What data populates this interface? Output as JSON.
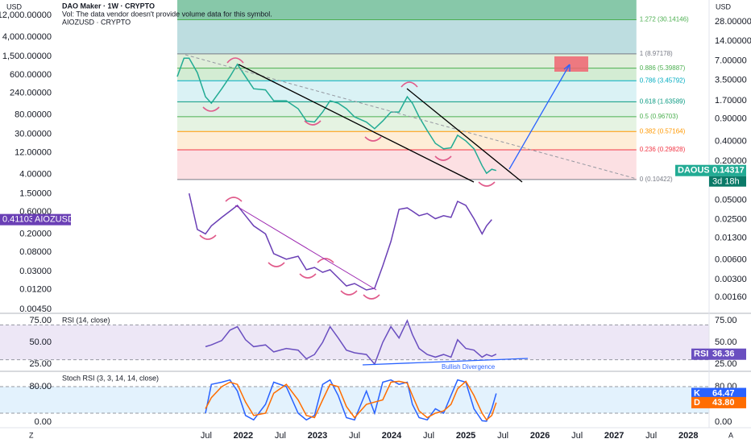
{
  "header": {
    "left_currency": "USD",
    "right_currency": "USD",
    "symbol": "DAO Maker · 1W · CRYPTO",
    "volume_note": "Vol: The data vendor doesn't provide volume data for this symbol.",
    "compare": "AIOZUSD · CRYPTO",
    "corner_left": "Z",
    "corner_right": "A"
  },
  "chart_data": [
    {
      "type": "line",
      "log": true,
      "xlim": [
        2018.72,
        2028.28
      ],
      "x": [
        2021.11,
        2021.2,
        2021.27,
        2021.38,
        2021.49,
        2021.57,
        2021.71,
        2021.82,
        2021.92,
        2022.03,
        2022.14,
        2022.3,
        2022.41,
        2022.58,
        2022.74,
        2022.85,
        2022.96,
        2023.07,
        2023.17,
        2023.28,
        2023.39,
        2023.5,
        2023.66,
        2023.77,
        2023.88,
        2023.99,
        2024.1,
        2024.21,
        2024.28,
        2024.37,
        2024.48,
        2024.59,
        2024.7,
        2024.8,
        2024.89,
        2025.0,
        2025.11,
        2025.22,
        2025.28,
        2025.35,
        2025.41
      ],
      "ylim": [
        0.00383,
        25920
      ],
      "yticks": [
        {
          "value": 12000,
          "label": "12,000.00000"
        },
        {
          "value": 4000,
          "label": "4,000.00000"
        },
        {
          "value": 1500,
          "label": "1,500.00000"
        },
        {
          "value": 600,
          "label": "600.00000"
        },
        {
          "value": 240,
          "label": "240.00000"
        },
        {
          "value": 80,
          "label": "80.00000"
        },
        {
          "value": 30,
          "label": "30.00000"
        },
        {
          "value": 12,
          "label": "12.00000"
        },
        {
          "value": 4,
          "label": "4.00000"
        },
        {
          "value": 1.5,
          "label": "1.50000"
        },
        {
          "value": 0.6,
          "label": "0.60000"
        },
        {
          "value": 0.2,
          "label": "0.20000"
        },
        {
          "value": 0.08,
          "label": "0.08000"
        },
        {
          "value": 0.03,
          "label": "0.03000"
        },
        {
          "value": 0.012,
          "label": "0.01200"
        },
        {
          "value": 0.0045,
          "label": "0.00450"
        }
      ],
      "y2lim": [
        0.00093,
        60.6
      ],
      "y2ticks": [
        {
          "value": 28,
          "label": "28.00000"
        },
        {
          "value": 14,
          "label": "14.00000"
        },
        {
          "value": 7,
          "label": "7.00000"
        },
        {
          "value": 3.5,
          "label": "3.50000"
        },
        {
          "value": 1.7,
          "label": "1.70000"
        },
        {
          "value": 0.9,
          "label": "0.90000"
        },
        {
          "value": 0.4,
          "label": "0.40000"
        },
        {
          "value": 0.2,
          "label": "0.20000"
        },
        {
          "value": 0.05,
          "label": "0.05000"
        },
        {
          "value": 0.025,
          "label": "0.02500"
        },
        {
          "value": 0.013,
          "label": "0.01300"
        },
        {
          "value": 0.006,
          "label": "0.00600"
        },
        {
          "value": 0.003,
          "label": "0.00300"
        },
        {
          "value": 0.0016,
          "label": "0.00160"
        }
      ],
      "series": [
        {
          "name": "AIOZUSD",
          "color": "#6a3fb5",
          "values": [
            null,
            null,
            1.54,
            0.25,
            0.2,
            0.3,
            0.46,
            0.63,
            0.84,
            0.5,
            0.3,
            0.2,
            0.074,
            0.056,
            0.065,
            0.033,
            0.037,
            0.029,
            0.033,
            0.022,
            0.0146,
            0.0165,
            0.0119,
            0.013,
            0.04,
            0.136,
            0.69,
            0.74,
            0.63,
            0.5,
            0.56,
            0.43,
            0.5,
            0.46,
            1.03,
            0.84,
            0.43,
            0.2,
            0.3,
            0.41103,
            null
          ]
        },
        {
          "name": "DAOUSD",
          "color": "#22ab94",
          "axis": "y2",
          "countdown": "3d 18h",
          "values": [
            4.0,
            7.7,
            7.7,
            4.6,
            1.96,
            1.56,
            2.6,
            4.0,
            6.2,
            4.0,
            2.6,
            2.5,
            1.7,
            1.7,
            1.28,
            0.83,
            0.8,
            1.14,
            1.7,
            1.56,
            1.28,
            0.96,
            0.8,
            0.63,
            0.83,
            1.14,
            1.14,
            1.96,
            1.56,
            0.96,
            0.59,
            0.375,
            0.31,
            0.32,
            0.5,
            0.41,
            0.31,
            0.17,
            0.13,
            0.15,
            0.14317
          ]
        }
      ],
      "fib": {
        "x": [
          2021.11,
          2027.3
        ],
        "levels": [
          {
            "value": 30.14146,
            "label": "1.272 (30.14146)"
          },
          {
            "value": 8.97178,
            "label": "1 (8.97178)"
          },
          {
            "value": 5.39887,
            "label": "0.886 (5.39887)"
          },
          {
            "value": 3.45792,
            "label": "0.786 (3.45792)"
          },
          {
            "value": 1.63589,
            "label": "0.618 (1.63589)"
          },
          {
            "value": 0.96703,
            "label": "0.5 (0.96703)"
          },
          {
            "value": 0.57164,
            "label": "0.382 (0.57164)"
          },
          {
            "value": 0.29828,
            "label": "0.236 (0.29828)"
          },
          {
            "value": 0.10422,
            "label": "0 (0.10422)"
          }
        ],
        "level_colors": [
          "#4caf50",
          "#787b86",
          "#4caf50",
          "#00acc1",
          "#089981",
          "#4caf50",
          "#ff9800",
          "#f23645",
          "#787b86"
        ],
        "band_colors": [
          "#5fb68c",
          "#a7d2d6",
          "#d4e8cd",
          "#c4e5c4",
          "#cdeef2",
          "#d3ecdc",
          "#dcefd8",
          "#fde7c9",
          "#fbd5d9"
        ]
      }
    },
    {
      "type": "line",
      "title": "RSI (14, close)",
      "xlim": [
        2018.72,
        2028.28
      ],
      "x": [
        2021.11,
        2021.2,
        2021.27,
        2021.38,
        2021.49,
        2021.57,
        2021.71,
        2021.82,
        2021.92,
        2022.03,
        2022.14,
        2022.3,
        2022.41,
        2022.58,
        2022.74,
        2022.85,
        2022.96,
        2023.07,
        2023.17,
        2023.28,
        2023.39,
        2023.5,
        2023.66,
        2023.77,
        2023.88,
        2023.99,
        2024.1,
        2024.21,
        2024.28,
        2024.37,
        2024.48,
        2024.59,
        2024.7,
        2024.8,
        2024.89,
        2025.0,
        2025.11,
        2025.22,
        2025.28,
        2025.35,
        2025.41
      ],
      "ylim": [
        17.6,
        82.4
      ],
      "yticks": [
        {
          "value": 75,
          "label": "75.00"
        },
        {
          "value": 50,
          "label": "50.00"
        },
        {
          "value": 25,
          "label": "25.00"
        }
      ],
      "band": [
        30,
        70
      ],
      "band_color": "#ede7f6",
      "annotation": "Bullish Divergence",
      "series": [
        {
          "name": "RSI",
          "color": "#6a4fc0",
          "values": [
            null,
            null,
            null,
            null,
            45,
            47,
            52,
            64,
            68,
            53,
            45,
            47,
            39,
            43,
            41,
            31,
            36,
            50,
            68,
            55,
            41,
            38,
            36,
            25,
            50,
            68,
            55,
            75,
            59,
            43,
            36,
            33,
            36,
            33,
            53,
            43,
            41,
            33,
            36,
            34,
            36.36
          ]
        }
      ]
    },
    {
      "type": "line",
      "title": "Stoch RSI (3, 3, 14, 14, close)",
      "xlim": [
        2018.72,
        2028.28
      ],
      "x": [
        2021.11,
        2021.2,
        2021.27,
        2021.38,
        2021.49,
        2021.57,
        2021.71,
        2021.82,
        2021.92,
        2022.03,
        2022.14,
        2022.3,
        2022.41,
        2022.58,
        2022.74,
        2022.85,
        2022.96,
        2023.07,
        2023.17,
        2023.28,
        2023.39,
        2023.5,
        2023.66,
        2023.77,
        2023.88,
        2023.99,
        2024.1,
        2024.21,
        2024.28,
        2024.37,
        2024.48,
        2024.59,
        2024.7,
        2024.8,
        2024.89,
        2025.0,
        2025.11,
        2025.22,
        2025.28,
        2025.35,
        2025.41
      ],
      "ylim": [
        -10.9,
        112.7
      ],
      "yticks": [
        {
          "value": 80,
          "label": "80.00"
        },
        {
          "value": 0,
          "label": "0.00"
        }
      ],
      "band": [
        20,
        80
      ],
      "band_color": "#e3f2fd",
      "xticks": [
        {
          "value": 2021.5,
          "label": "Jul"
        },
        2022,
        {
          "value": 2022.5,
          "label": "Jul"
        },
        2023,
        {
          "value": 2023.5,
          "label": "Jul"
        },
        2024,
        {
          "value": 2024.5,
          "label": "Jul"
        },
        2025,
        {
          "value": 2025.5,
          "label": "Jul"
        },
        2026,
        {
          "value": 2026.5,
          "label": "Jul"
        },
        2027,
        {
          "value": 2027.5,
          "label": "Jul"
        },
        2028
      ],
      "series": [
        {
          "name": "K",
          "color": "#2962ff",
          "values": [
            null,
            null,
            null,
            null,
            20,
            85,
            90,
            95,
            70,
            15,
            5,
            40,
            90,
            80,
            20,
            5,
            15,
            85,
            95,
            60,
            10,
            5,
            70,
            20,
            90,
            95,
            85,
            90,
            40,
            10,
            5,
            30,
            20,
            60,
            95,
            90,
            30,
            3,
            2,
            30,
            64.47
          ]
        },
        {
          "name": "D",
          "color": "#ff6d00",
          "last_label": "43.80",
          "values": [
            null,
            null,
            null,
            null,
            30,
            55,
            80,
            90,
            85,
            45,
            15,
            20,
            65,
            85,
            50,
            15,
            10,
            50,
            85,
            80,
            35,
            10,
            40,
            45,
            50,
            90,
            92,
            88,
            60,
            25,
            10,
            20,
            25,
            40,
            75,
            92,
            60,
            20,
            5,
            15,
            43.8
          ]
        }
      ]
    }
  ]
}
